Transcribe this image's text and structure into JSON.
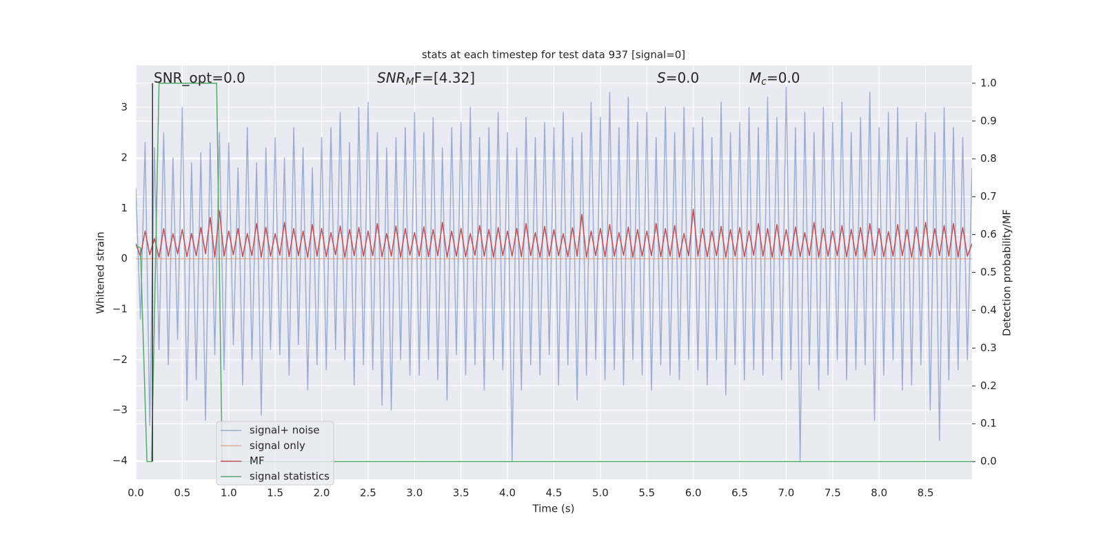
{
  "chart_data": {
    "type": "line",
    "title": "stats at each timestep for test data 937 [signal=0]",
    "xlabel": "Time (s)",
    "ylabel": "Whitened strain",
    "y2label": "Detection probability/MF",
    "annotations": [
      {
        "base": "SNR_opt=0.0"
      },
      {
        "base": "SNR",
        "sub": "M",
        "rest": "F=[4.32]"
      },
      {
        "base": "S",
        "rest": "=0.0"
      },
      {
        "base": "M",
        "sub": "c",
        "rest": "=0.0"
      }
    ],
    "vlines": [
      0.18
    ],
    "vline_color": "#333333",
    "grid": true,
    "xlim": [
      0,
      9.0
    ],
    "ylim": [
      -4.37,
      3.83
    ],
    "y2lim": [
      -0.047,
      1.047
    ],
    "xticks": [
      {
        "value": 0,
        "label": "0.0"
      },
      0.5,
      {
        "value": 1,
        "label": "1.0"
      },
      1.5,
      {
        "value": 2,
        "label": "2.0"
      },
      2.5,
      {
        "value": 3,
        "label": "3.0"
      },
      3.5,
      {
        "value": 4,
        "label": "4.0"
      },
      4.5,
      {
        "value": 5,
        "label": "5.0"
      },
      5.5,
      {
        "value": 6,
        "label": "6.0"
      },
      6.5,
      {
        "value": 7,
        "label": "7.0"
      },
      7.5,
      {
        "value": 8,
        "label": "8.0"
      },
      8.5
    ],
    "yticks": [
      {
        "value": -4,
        "label": "−4"
      },
      {
        "value": -3,
        "label": "−3"
      },
      {
        "value": -2,
        "label": "−2"
      },
      {
        "value": -1,
        "label": "−1"
      },
      0,
      1,
      2,
      3
    ],
    "y2ticks": [
      {
        "value": 0,
        "label": "0.0"
      },
      0.1,
      0.2,
      0.3,
      0.4,
      0.5,
      0.6,
      0.7,
      0.8,
      0.9,
      {
        "value": 1,
        "label": "1.0"
      }
    ],
    "x": [
      0,
      0.05,
      0.1,
      0.15,
      0.2,
      0.25,
      0.3,
      0.35,
      0.4,
      0.45,
      0.5,
      0.55,
      0.6,
      0.65,
      0.7,
      0.75,
      0.8,
      0.85,
      0.9,
      0.95,
      1,
      1.05,
      1.1,
      1.15,
      1.2,
      1.25,
      1.3,
      1.35,
      1.4,
      1.45,
      1.5,
      1.55,
      1.6,
      1.65,
      1.7,
      1.75,
      1.8,
      1.85,
      1.9,
      1.95,
      2,
      2.05,
      2.1,
      2.15,
      2.2,
      2.25,
      2.3,
      2.35,
      2.4,
      2.45,
      2.5,
      2.55,
      2.6,
      2.65,
      2.7,
      2.75,
      2.8,
      2.85,
      2.9,
      2.95,
      3,
      3.05,
      3.1,
      3.15,
      3.2,
      3.25,
      3.3,
      3.35,
      3.4,
      3.45,
      3.5,
      3.55,
      3.6,
      3.65,
      3.7,
      3.75,
      3.8,
      3.85,
      3.9,
      3.95,
      4,
      4.05,
      4.1,
      4.15,
      4.2,
      4.25,
      4.3,
      4.35,
      4.4,
      4.45,
      4.5,
      4.55,
      4.6,
      4.65,
      4.7,
      4.75,
      4.8,
      4.85,
      4.9,
      4.95,
      5,
      5.05,
      5.1,
      5.15,
      5.2,
      5.25,
      5.3,
      5.35,
      5.4,
      5.45,
      5.5,
      5.55,
      5.6,
      5.65,
      5.7,
      5.75,
      5.8,
      5.85,
      5.9,
      5.95,
      6,
      6.05,
      6.1,
      6.15,
      6.2,
      6.25,
      6.3,
      6.35,
      6.4,
      6.45,
      6.5,
      6.55,
      6.6,
      6.65,
      6.7,
      6.75,
      6.8,
      6.85,
      6.9,
      6.95,
      7,
      7.05,
      7.1,
      7.15,
      7.2,
      7.25,
      7.3,
      7.35,
      7.4,
      7.45,
      7.5,
      7.55,
      7.6,
      7.65,
      7.7,
      7.75,
      7.8,
      7.85,
      7.9,
      7.95,
      8,
      8.05,
      8.1,
      8.15,
      8.2,
      8.25,
      8.3,
      8.35,
      8.4,
      8.45,
      8.5,
      8.55,
      8.6,
      8.65,
      8.7,
      8.75,
      8.8,
      8.85,
      8.9,
      8.95,
      9
    ],
    "series": [
      {
        "name": "signal+ noise",
        "color": "#4c72b0",
        "opacity": 0.5,
        "values": [
          1.4,
          -1.2,
          2.3,
          -3.3,
          2.2,
          -1.8,
          2.5,
          -2.1,
          2.0,
          -1.6,
          3.0,
          -2.8,
          1.9,
          -2.4,
          2.1,
          -3.2,
          2.3,
          -1.9,
          2.5,
          -2.2,
          2.3,
          -1.7,
          1.8,
          -2.5,
          2.6,
          -2.0,
          1.9,
          -3.1,
          2.2,
          -1.8,
          2.4,
          -1.9,
          2.0,
          -2.3,
          2.6,
          -1.7,
          2.2,
          -2.6,
          1.8,
          -2.1,
          2.4,
          -2.2,
          2.6,
          -1.8,
          2.9,
          -2.0,
          2.3,
          -2.5,
          3.0,
          -2.1,
          3.1,
          -2.2,
          2.5,
          -2.9,
          2.2,
          -3.0,
          2.4,
          -2.0,
          2.6,
          -2.3,
          2.9,
          -2.3,
          2.5,
          -2.0,
          2.8,
          -2.4,
          2.2,
          -2.8,
          2.6,
          -1.9,
          2.7,
          -2.3,
          3.0,
          -2.1,
          2.4,
          -2.6,
          2.6,
          -2.0,
          2.9,
          -2.2,
          2.5,
          -4.0,
          2.2,
          -2.6,
          2.8,
          -2.1,
          2.4,
          -2.3,
          2.7,
          -1.9,
          2.6,
          -2.5,
          2.9,
          -2.1,
          2.4,
          -2.8,
          2.5,
          -2.3,
          3.1,
          -2.0,
          2.8,
          -2.4,
          3.3,
          -2.2,
          2.6,
          -2.5,
          3.2,
          -2.0,
          2.7,
          -2.3,
          2.9,
          -2.6,
          2.4,
          -2.1,
          3.0,
          -2.3,
          2.5,
          -2.4,
          3.0,
          -2.0,
          2.6,
          -2.2,
          2.8,
          -2.5,
          2.4,
          -2.0,
          3.1,
          -2.7,
          2.5,
          -2.1,
          2.7,
          -2.4,
          3.0,
          -2.2,
          2.6,
          -2.3,
          3.2,
          -2.0,
          2.8,
          -2.4,
          3.4,
          -2.2,
          2.6,
          -4.0,
          2.9,
          -2.1,
          2.5,
          -2.6,
          3.0,
          -2.3,
          2.7,
          -2.0,
          3.1,
          -2.4,
          2.5,
          -2.2,
          2.8,
          -2.1,
          3.3,
          -3.2,
          2.6,
          -2.3,
          2.9,
          -2.0,
          3.0,
          -2.6,
          2.4,
          -2.5,
          2.7,
          -2.1,
          2.9,
          -3.0,
          2.5,
          -3.6,
          3.0,
          -2.4,
          2.6,
          -2.2,
          2.4,
          -2.0,
          1.8
        ]
      },
      {
        "name": "signal only",
        "color": "#dd8452",
        "opacity": 0.6,
        "x": [
          0,
          9.0
        ],
        "values": [
          0,
          0
        ]
      },
      {
        "name": "MF",
        "color": "#c44e52",
        "opacity": 1,
        "values": [
          0.3,
          0.05,
          0.55,
          0.08,
          0.4,
          0.03,
          0.6,
          0.05,
          0.5,
          0.1,
          0.58,
          0.04,
          0.5,
          0.06,
          0.62,
          0.1,
          0.82,
          0.03,
          0.95,
          0.05,
          0.55,
          0.08,
          0.6,
          0.04,
          0.5,
          0.06,
          0.7,
          0.03,
          0.62,
          0.05,
          0.5,
          0.07,
          0.72,
          0.04,
          0.6,
          0.06,
          0.55,
          0.03,
          0.68,
          0.05,
          0.6,
          0.04,
          0.52,
          0.08,
          0.65,
          0.03,
          0.58,
          0.06,
          0.62,
          0.05,
          0.55,
          0.06,
          0.7,
          0.04,
          0.5,
          0.05,
          0.65,
          0.03,
          0.6,
          0.07,
          0.52,
          0.05,
          0.63,
          0.04,
          0.58,
          0.06,
          0.72,
          0.03,
          0.55,
          0.05,
          0.6,
          0.04,
          0.5,
          0.07,
          0.66,
          0.05,
          0.58,
          0.03,
          0.62,
          0.06,
          0.55,
          0.05,
          0.6,
          0.04,
          0.7,
          0.06,
          0.52,
          0.03,
          0.64,
          0.05,
          0.58,
          0.06,
          0.5,
          0.04,
          0.62,
          0.05,
          0.88,
          0.03,
          0.55,
          0.06,
          0.6,
          0.04,
          0.68,
          0.05,
          0.52,
          0.07,
          0.63,
          0.03,
          0.58,
          0.05,
          0.55,
          0.06,
          0.7,
          0.04,
          0.6,
          0.05,
          0.66,
          0.03,
          0.5,
          0.06,
          0.98,
          0.05,
          0.6,
          0.04,
          0.55,
          0.06,
          0.64,
          0.03,
          0.58,
          0.05,
          0.62,
          0.04,
          0.55,
          0.07,
          0.7,
          0.05,
          0.6,
          0.03,
          0.68,
          0.06,
          0.58,
          0.05,
          0.63,
          0.04,
          0.52,
          0.06,
          0.72,
          0.03,
          0.6,
          0.05,
          0.55,
          0.06,
          0.66,
          0.04,
          0.58,
          0.05,
          0.62,
          0.03,
          0.7,
          0.06,
          0.6,
          0.04,
          0.54,
          0.05,
          0.68,
          0.06,
          0.58,
          0.03,
          0.63,
          0.05,
          0.72,
          0.04,
          0.6,
          0.06,
          0.66,
          0.05,
          0.7,
          0.03,
          0.62,
          0.05,
          0.3
        ]
      },
      {
        "name": "signal statistics",
        "color": "#55a868",
        "opacity": 1,
        "axis": "y2",
        "x": [
          0,
          0.05,
          0.12,
          0.17,
          0.25,
          0.87,
          0.93,
          9.0
        ],
        "values": [
          0.57,
          0.565,
          0,
          0,
          1,
          1,
          0,
          0
        ]
      }
    ]
  }
}
